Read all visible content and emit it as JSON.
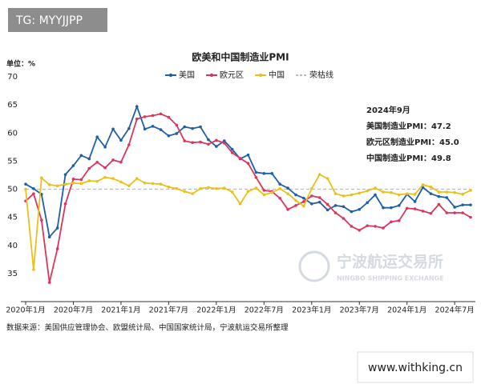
{
  "overlay_top": "TG: MYYJJPP",
  "overlay_bottom": "www.withking.cn",
  "watermark": {
    "name": "宁波航运交易所",
    "subtitle": "NINGBO SHIPPING EXCHANGE"
  },
  "chart_data": {
    "type": "line",
    "title": "欧美和中国制造业PMI",
    "unit_label": "单位：%",
    "source": "数据来源：美国供应管理协会、欧盟统计局、中国国家统计局，宁波航运交易所整理",
    "categories": [
      "2020年1月",
      null,
      null,
      null,
      null,
      null,
      "2020年7月",
      null,
      null,
      null,
      null,
      null,
      "2021年1月",
      null,
      null,
      null,
      null,
      null,
      "2021年7月",
      null,
      null,
      null,
      null,
      null,
      "2022年1月",
      null,
      null,
      null,
      null,
      null,
      "2022年7月",
      null,
      null,
      null,
      null,
      null,
      "2023年1月",
      null,
      null,
      null,
      null,
      null,
      "2023年7月",
      null,
      null,
      null,
      null,
      null,
      "2024年1月",
      null,
      null,
      null,
      null,
      null,
      "2024年7月",
      null,
      null
    ],
    "series": [
      {
        "name": "美国",
        "color": "#1f5fa8",
        "values": [
          50.9,
          50.1,
          49.1,
          41.5,
          43.1,
          52.6,
          54.2,
          56.0,
          55.4,
          59.3,
          57.5,
          60.7,
          58.7,
          60.8,
          64.7,
          60.7,
          61.2,
          60.6,
          59.5,
          59.9,
          61.1,
          60.8,
          61.1,
          58.8,
          57.6,
          58.6,
          57.1,
          55.4,
          56.1,
          53.0,
          52.8,
          52.8,
          50.9,
          50.2,
          49.0,
          48.4,
          47.4,
          47.7,
          46.3,
          47.1,
          46.9,
          46.0,
          46.4,
          47.6,
          49.0,
          46.7,
          46.7,
          47.1,
          49.1,
          47.8,
          50.3,
          49.2,
          48.7,
          48.5,
          46.8,
          47.2,
          47.2
        ]
      },
      {
        "name": "欧元区",
        "color": "#d9365e",
        "values": [
          47.9,
          49.2,
          44.5,
          33.4,
          39.4,
          47.4,
          51.8,
          51.7,
          53.7,
          54.8,
          53.8,
          55.2,
          54.8,
          57.9,
          62.5,
          62.9,
          63.1,
          63.4,
          62.8,
          61.4,
          58.6,
          58.3,
          58.4,
          58.0,
          58.7,
          58.2,
          56.5,
          55.5,
          54.6,
          52.1,
          49.8,
          49.6,
          48.4,
          46.4,
          47.1,
          47.8,
          48.8,
          48.5,
          47.3,
          45.8,
          44.8,
          43.4,
          42.7,
          43.5,
          43.4,
          43.1,
          44.2,
          44.4,
          46.6,
          46.5,
          46.1,
          45.7,
          47.3,
          45.8,
          45.8,
          45.8,
          45.0
        ]
      },
      {
        "name": "中国",
        "color": "#e8c11a",
        "values": [
          50.0,
          35.7,
          52.0,
          50.8,
          50.6,
          50.9,
          51.1,
          51.0,
          51.5,
          51.4,
          52.1,
          51.9,
          51.3,
          50.6,
          51.9,
          51.1,
          51.0,
          50.9,
          50.4,
          50.1,
          49.6,
          49.2,
          50.1,
          50.3,
          50.1,
          50.2,
          49.5,
          47.4,
          49.6,
          50.2,
          49.0,
          49.4,
          50.1,
          49.2,
          48.0,
          47.0,
          50.1,
          52.6,
          51.9,
          49.2,
          48.8,
          49.0,
          49.3,
          49.7,
          50.2,
          49.5,
          49.4,
          49.0,
          49.2,
          49.1,
          50.8,
          50.4,
          49.5,
          49.5,
          49.4,
          49.1,
          49.8
        ]
      }
    ],
    "reference_line": {
      "name": "荣枯线",
      "value": 50,
      "color": "#bbbbbb"
    },
    "annotation": [
      "2024年9月",
      "美国制造业PMI：47.2",
      "欧元区制造业PMI：45.0",
      "中国制造业PMI：49.8"
    ],
    "ylim": [
      30,
      70
    ],
    "yticks": [
      35,
      40,
      45,
      50,
      55,
      60,
      65,
      70
    ],
    "grid": false
  }
}
